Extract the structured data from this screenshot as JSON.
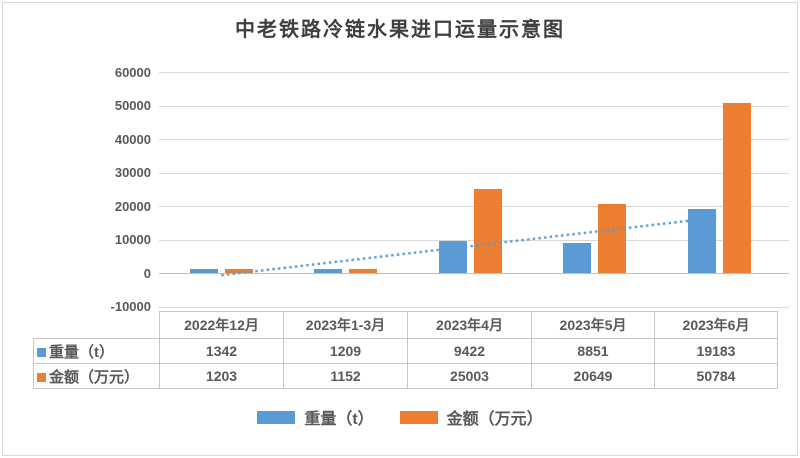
{
  "title": "中老铁路冷链水果进口运量示意图",
  "colors": {
    "weight_blue": "#5B9BD5",
    "amount_orange": "#ED7D31",
    "text_gray": "#595959",
    "gridline": "#D9D9D9",
    "axis_line": "#BFBFBF",
    "frame_border": "#D9D9D9"
  },
  "chart_data": {
    "type": "bar",
    "title": "中老铁路冷链水果进口运量示意图",
    "categories": [
      "2022年12月",
      "2023年1-3月",
      "2023年4月",
      "2023年5月",
      "2023年6月"
    ],
    "series": [
      {
        "key": "weight",
        "name": "重量（t）",
        "color": "#5B9BD5",
        "values": [
          1342,
          1209,
          9422,
          8851,
          19183
        ]
      },
      {
        "key": "amount",
        "name": "金额（万元）",
        "color": "#ED7D31",
        "values": [
          1203,
          1152,
          25003,
          20649,
          50784
        ]
      }
    ],
    "trendline": {
      "of_series": "重量（t）",
      "fit": "linear",
      "style": "dotted",
      "color": "#5B9BD5"
    },
    "y_axis": {
      "min": -10000,
      "max": 60000,
      "step": 10000,
      "tick_labels": [
        "60000",
        "50000",
        "40000",
        "30000",
        "20000",
        "10000",
        "0",
        "-10000"
      ]
    },
    "grid": true,
    "legend_position": "bottom",
    "data_table_shown": true
  },
  "legend": {
    "items": [
      {
        "label": "重量（t）",
        "color": "#5B9BD5"
      },
      {
        "label": "金额（万元）",
        "color": "#ED7D31"
      }
    ]
  }
}
